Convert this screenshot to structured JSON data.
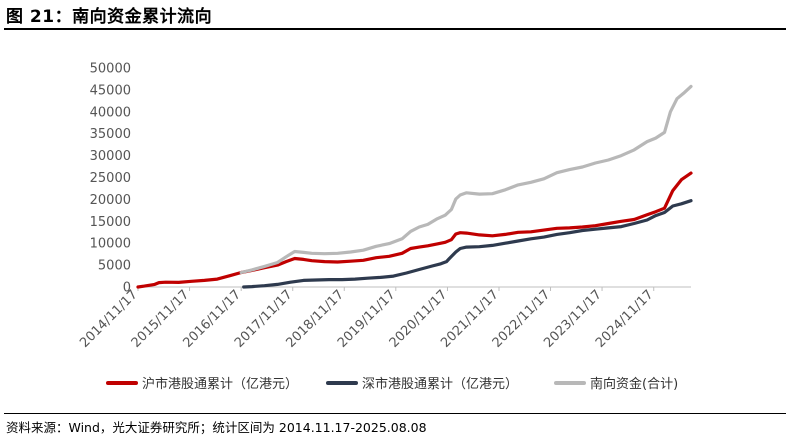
{
  "header": {
    "title": "图 21：南向资金累计流向"
  },
  "footer": {
    "source": "资料来源：Wind，光大证券研究所；统计区间为 2014.11.17-2025.08.08"
  },
  "chart_data": {
    "type": "line",
    "title": "",
    "xlabel": "",
    "ylabel": "",
    "ylim": [
      0,
      50000
    ],
    "yticks": [
      0,
      5000,
      10000,
      15000,
      20000,
      25000,
      30000,
      35000,
      40000,
      45000,
      50000
    ],
    "xlim": [
      "2014-11-17",
      "2025-08-08"
    ],
    "xticks": [
      "2014/11/17",
      "2015/11/17",
      "2016/11/17",
      "2017/11/17",
      "2018/11/17",
      "2019/11/17",
      "2020/11/17",
      "2021/11/17",
      "2022/11/17",
      "2023/11/17",
      "2024/11/17"
    ],
    "grid": false,
    "legend": "bottom",
    "series": [
      {
        "name": "沪市港股通累计（亿港元）",
        "color": "#c00000",
        "x": [
          "2014-11-17",
          "2015-01-01",
          "2015-03-15",
          "2015-04-15",
          "2015-06-01",
          "2015-09-01",
          "2015-12-01",
          "2016-03-01",
          "2016-06-01",
          "2016-09-01",
          "2016-11-17",
          "2017-02-01",
          "2017-05-01",
          "2017-08-01",
          "2017-10-01",
          "2017-12-01",
          "2018-02-01",
          "2018-04-01",
          "2018-07-01",
          "2018-10-01",
          "2019-01-01",
          "2019-04-01",
          "2019-07-01",
          "2019-10-01",
          "2020-01-01",
          "2020-03-01",
          "2020-05-01",
          "2020-07-01",
          "2020-09-01",
          "2020-11-01",
          "2020-12-15",
          "2021-01-15",
          "2021-02-15",
          "2021-04-01",
          "2021-07-01",
          "2021-10-01",
          "2022-01-01",
          "2022-04-01",
          "2022-07-01",
          "2022-10-01",
          "2023-01-01",
          "2023-04-01",
          "2023-07-01",
          "2023-10-01",
          "2024-01-01",
          "2024-04-01",
          "2024-07-01",
          "2024-10-01",
          "2024-12-01",
          "2025-02-01",
          "2025-04-01",
          "2025-06-01",
          "2025-08-08"
        ],
        "values": [
          0,
          200,
          600,
          1000,
          1100,
          1050,
          1300,
          1500,
          1800,
          2600,
          3300,
          3800,
          4400,
          5000,
          5800,
          6500,
          6300,
          6000,
          5800,
          5700,
          5900,
          6100,
          6700,
          7000,
          7700,
          8800,
          9100,
          9400,
          9800,
          10200,
          10800,
          12100,
          12400,
          12300,
          11900,
          11700,
          12000,
          12500,
          12600,
          13000,
          13400,
          13500,
          13700,
          14000,
          14500,
          15000,
          15400,
          16500,
          17200,
          18000,
          22000,
          24500,
          26000
        ]
      },
      {
        "name": "深市港股通累计（亿港元）",
        "color": "#2e3a4e",
        "x": [
          "2016-12-05",
          "2017-02-01",
          "2017-05-01",
          "2017-08-01",
          "2017-11-01",
          "2018-02-01",
          "2018-05-01",
          "2018-08-01",
          "2018-11-01",
          "2019-02-01",
          "2019-05-01",
          "2019-08-01",
          "2019-11-01",
          "2020-02-01",
          "2020-05-01",
          "2020-08-01",
          "2020-10-01",
          "2020-11-10",
          "2020-12-01",
          "2021-01-15",
          "2021-02-15",
          "2021-04-01",
          "2021-07-01",
          "2021-10-01",
          "2022-01-01",
          "2022-04-01",
          "2022-07-01",
          "2022-10-01",
          "2023-01-01",
          "2023-04-01",
          "2023-07-01",
          "2023-10-01",
          "2024-01-01",
          "2024-04-01",
          "2024-07-01",
          "2024-10-01",
          "2024-12-01",
          "2025-02-01",
          "2025-04-01",
          "2025-06-01",
          "2025-08-08"
        ],
        "values": [
          0,
          100,
          300,
          600,
          1100,
          1500,
          1600,
          1700,
          1700,
          1800,
          2000,
          2200,
          2500,
          3200,
          4000,
          4800,
          5300,
          5800,
          6500,
          8000,
          8800,
          9100,
          9200,
          9500,
          10000,
          10500,
          11000,
          11400,
          12000,
          12400,
          12900,
          13200,
          13500,
          13800,
          14500,
          15300,
          16300,
          17000,
          18500,
          19000,
          19700
        ]
      },
      {
        "name": "南向资金(合计)",
        "color": "#b8b8b8",
        "x": [
          "2016-11-17",
          "2017-02-01",
          "2017-05-01",
          "2017-08-01",
          "2017-10-01",
          "2017-12-01",
          "2018-02-01",
          "2018-04-01",
          "2018-07-01",
          "2018-10-01",
          "2019-01-01",
          "2019-04-01",
          "2019-07-01",
          "2019-10-01",
          "2020-01-01",
          "2020-03-01",
          "2020-05-01",
          "2020-07-01",
          "2020-09-01",
          "2020-11-01",
          "2020-12-15",
          "2021-01-15",
          "2021-02-15",
          "2021-04-01",
          "2021-07-01",
          "2021-10-01",
          "2022-01-01",
          "2022-04-01",
          "2022-07-01",
          "2022-10-01",
          "2023-01-01",
          "2023-04-01",
          "2023-07-01",
          "2023-10-01",
          "2024-01-01",
          "2024-04-01",
          "2024-07-01",
          "2024-10-01",
          "2024-12-01",
          "2025-02-01",
          "2025-03-15",
          "2025-05-01",
          "2025-06-15",
          "2025-08-08"
        ],
        "values": [
          3300,
          3900,
          4700,
          5600,
          6900,
          8100,
          7900,
          7700,
          7600,
          7700,
          8000,
          8400,
          9300,
          9900,
          11000,
          12700,
          13700,
          14300,
          15500,
          16400,
          17700,
          20100,
          21000,
          21500,
          21200,
          21300,
          22200,
          23300,
          23900,
          24700,
          26100,
          26800,
          27400,
          28300,
          29000,
          30000,
          31300,
          33200,
          34000,
          35300,
          40000,
          43000,
          44200,
          45800
        ]
      }
    ]
  }
}
